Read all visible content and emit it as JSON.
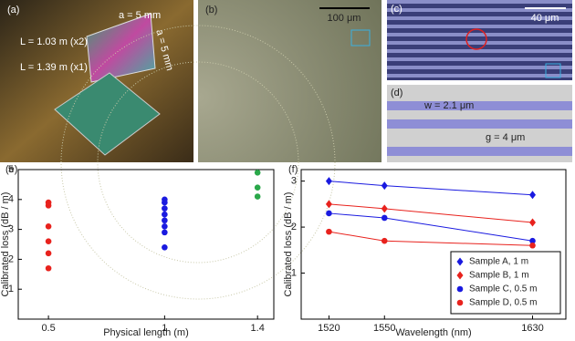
{
  "panels": {
    "a": {
      "label": "(a)",
      "side_top": "a = 5 mm",
      "side_right": "a = 5 mm",
      "chip1": "L = 1.03 m (x2)",
      "chip2": "L = 1.39 m (x1)"
    },
    "b": {
      "label": "(b)",
      "scale": "100 μm"
    },
    "c": {
      "label": "(c)",
      "scale": "40 μm"
    },
    "d": {
      "label": "(d)",
      "width": "w = 2.1 μm",
      "gap": "g = 4 μm"
    }
  },
  "chart_data": [
    {
      "type": "scatter",
      "panel_label": "(e)",
      "x_label": "Physical length (m)",
      "y_label": "Calibrated loss (dB / m)",
      "xlim": [
        0.37,
        1.47
      ],
      "xticks": [
        0.5,
        1,
        1.4
      ],
      "ylim": [
        0,
        5
      ],
      "yticks": [
        1,
        2,
        3,
        4,
        5
      ],
      "series": [
        {
          "color": "#e8221d",
          "x": [
            0.5,
            0.5,
            0.5,
            0.5,
            0.5,
            0.5
          ],
          "values": [
            3.9,
            3.8,
            3.1,
            2.6,
            2.2,
            1.7
          ]
        },
        {
          "color": "#1a1ae0",
          "x": [
            1,
            1,
            1,
            1,
            1,
            1,
            1,
            1
          ],
          "values": [
            4.0,
            3.9,
            3.7,
            3.5,
            3.3,
            3.1,
            2.9,
            2.4
          ]
        },
        {
          "color": "#2aa84a",
          "x": [
            1.4,
            1.4,
            1.4
          ],
          "values": [
            4.9,
            4.4,
            4.1
          ]
        }
      ]
    },
    {
      "type": "line",
      "panel_label": "(f)",
      "x_label": "Wavelength (nm)",
      "y_label": "Calibrated loss (dB / m)",
      "xlim": [
        1505,
        1648
      ],
      "xticks": [
        1520,
        1550,
        1630
      ],
      "ylim": [
        0,
        3.25
      ],
      "yticks": [
        1,
        2,
        3
      ],
      "legend": "lower right",
      "series": [
        {
          "name": "Sample A, 1 m",
          "color": "#1a1ae0",
          "marker": "diamond",
          "x": [
            1520,
            1550,
            1630
          ],
          "values": [
            3.0,
            2.9,
            2.7
          ]
        },
        {
          "name": "Sample B, 1 m",
          "color": "#e8221d",
          "marker": "diamond",
          "x": [
            1520,
            1550,
            1630
          ],
          "values": [
            2.5,
            2.4,
            2.1
          ]
        },
        {
          "name": "Sample C, 0.5 m",
          "color": "#1a1ae0",
          "marker": "circle",
          "x": [
            1520,
            1550,
            1630
          ],
          "values": [
            2.3,
            2.2,
            1.7
          ]
        },
        {
          "name": "Sample D, 0.5 m",
          "color": "#e8221d",
          "marker": "circle",
          "x": [
            1520,
            1550,
            1630
          ],
          "values": [
            1.9,
            1.7,
            1.6
          ]
        }
      ]
    }
  ]
}
